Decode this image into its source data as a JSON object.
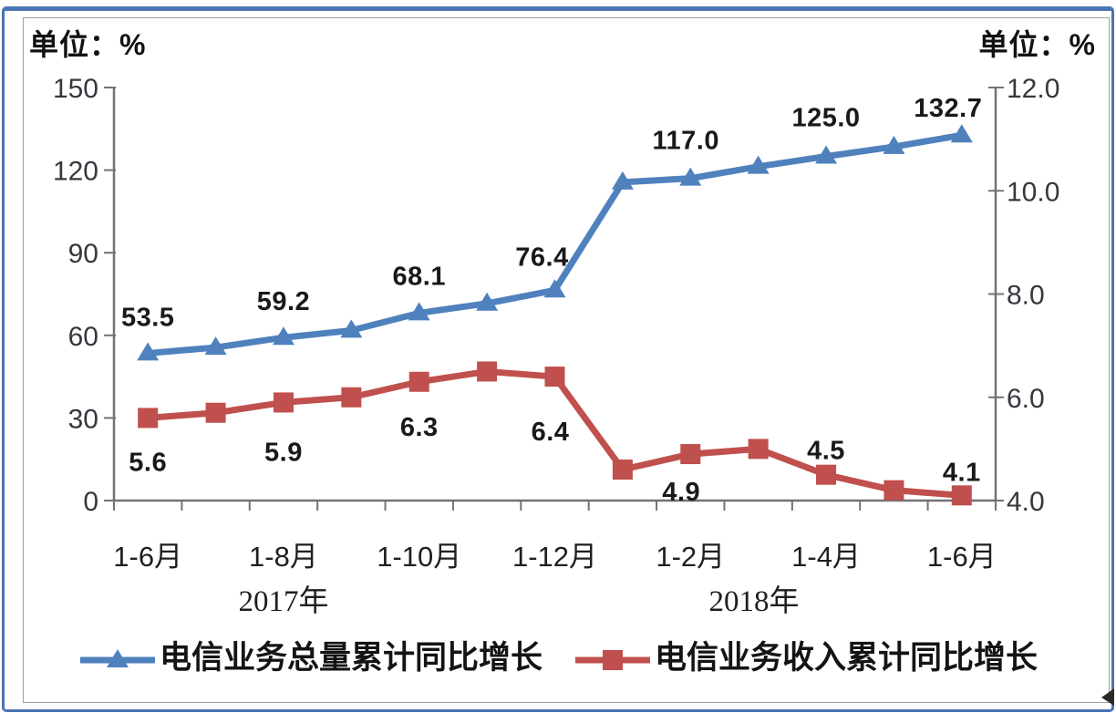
{
  "chart_data": {
    "type": "line",
    "dual_y_axis": true,
    "grid": false,
    "legend_position": "bottom",
    "left_axis": {
      "unit": "单位：%",
      "min": 0,
      "max": 150,
      "tick_labels": [
        "0",
        "30",
        "60",
        "90",
        "120",
        "150"
      ]
    },
    "right_axis": {
      "unit": "单位：%",
      "min": 4.0,
      "max": 12.0,
      "tick_labels": [
        "4.0",
        "6.0",
        "8.0",
        "10.0",
        "12.0"
      ]
    },
    "x_tick_labels": [
      "1-6月",
      "",
      "1-8月",
      "",
      "1-10月",
      "",
      "1-12月",
      "",
      "1-2月",
      "",
      "1-4月",
      "",
      "1-6月"
    ],
    "year_labels": [
      "2017年",
      "2018年"
    ],
    "series": [
      {
        "name": "电信业务总量累计同比增长",
        "axis": "left",
        "color": "#4f81bd",
        "marker": "triangle",
        "values": [
          53.5,
          55.6,
          59.2,
          61.8,
          68.1,
          71.6,
          76.4,
          115.6,
          117.0,
          121.3,
          125.0,
          128.5,
          132.7
        ],
        "point_labels": [
          "53.5",
          null,
          "59.2",
          null,
          "68.1",
          null,
          "76.4",
          null,
          "117.0",
          null,
          "125.0",
          null,
          "132.7"
        ]
      },
      {
        "name": "电信业务收入累计同比增长",
        "axis": "right",
        "color": "#c0504d",
        "marker": "square",
        "values": [
          5.6,
          5.7,
          5.9,
          6.0,
          6.3,
          6.5,
          6.4,
          4.6,
          4.9,
          5.0,
          4.5,
          4.2,
          4.1
        ],
        "point_labels": [
          "5.6",
          null,
          "5.9",
          null,
          "6.3",
          null,
          "6.4",
          null,
          "4.9",
          null,
          "4.5",
          null,
          "4.1"
        ]
      }
    ]
  }
}
